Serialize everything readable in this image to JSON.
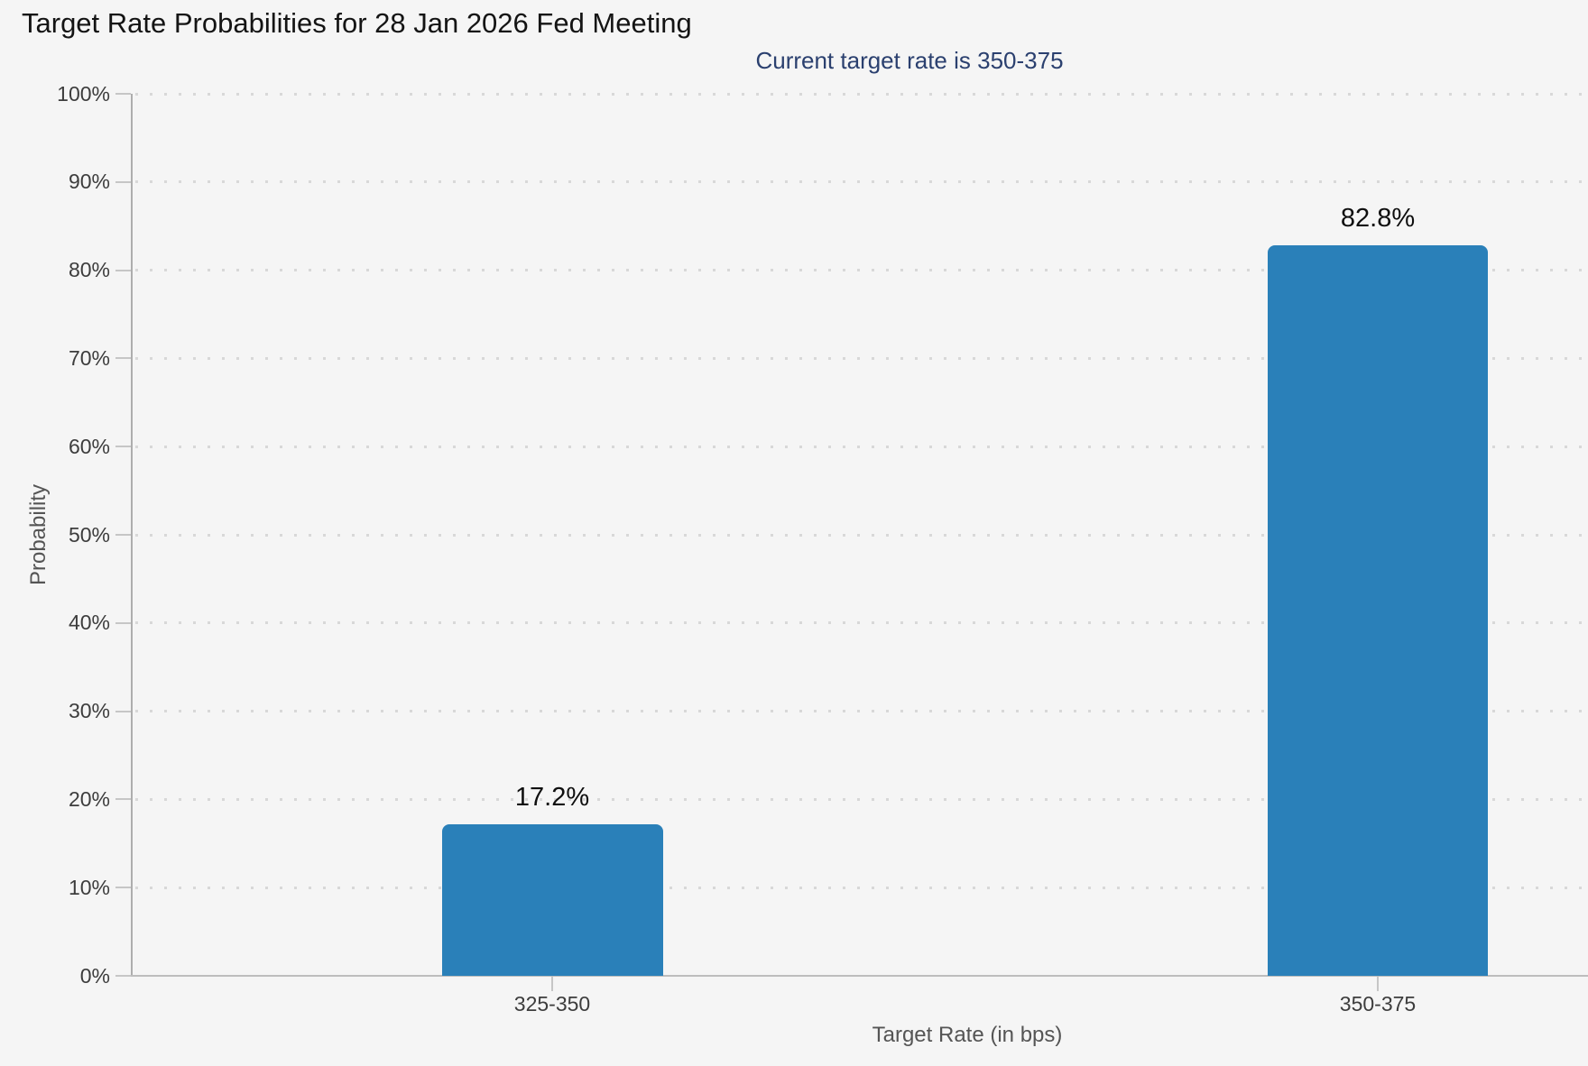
{
  "header": {
    "title": "Target Rate Probabilities for 28 Jan 2026 Fed Meeting",
    "subtitle": "Current target rate is 350-375"
  },
  "colors": {
    "bar": "#2a80b9",
    "subtitle": "#2b406f",
    "background": "#f5f5f5",
    "gridline_dots": "#d8d8d8",
    "axis_text": "#3d3d3d"
  },
  "chart_data": {
    "type": "bar",
    "title": "Target Rate Probabilities for 28 Jan 2026 Fed Meeting",
    "subtitle": "Current target rate is 350-375",
    "categories": [
      "325-350",
      "350-375"
    ],
    "values": [
      17.2,
      82.8
    ],
    "value_labels": [
      "17.2%",
      "82.8%"
    ],
    "xlabel": "Target Rate (in bps)",
    "ylabel": "Probability",
    "ylim": [
      0,
      100
    ],
    "ytick_step": 10,
    "ytick_suffix": "%",
    "grid": "dotted horizontal",
    "legend_position": "none"
  }
}
